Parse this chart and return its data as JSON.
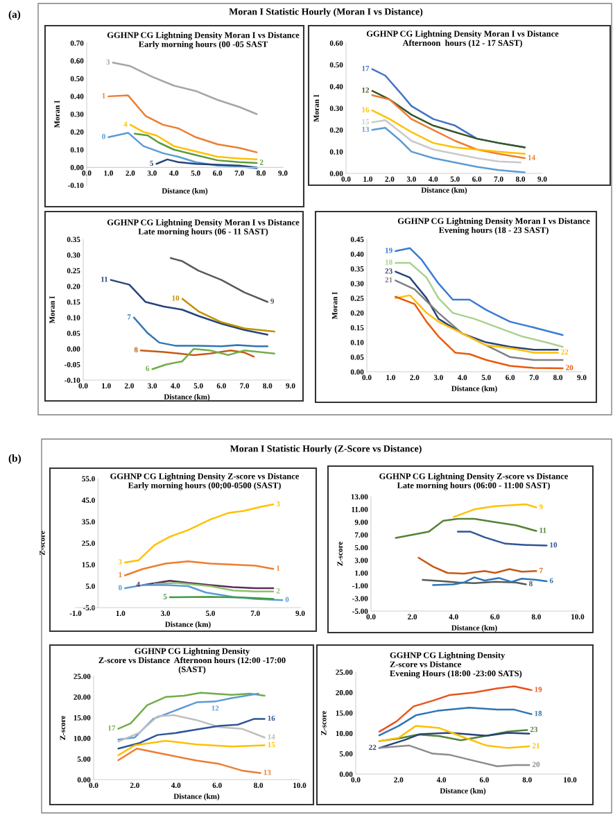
{
  "chart_data": [
    {
      "type": "line",
      "title": "GGHNP CG Lightning Density Moran I vs Distance",
      "subtitle": "Early morning hours (00 -05 SAST",
      "xlabel": "Distance (km)",
      "ylabel": "Moran I",
      "annotations": [
        "(a)",
        "Moran I Statistic Hourly (Moran I vs Distance)"
      ],
      "xlim": [
        0,
        9
      ],
      "xticks": [
        {
          "value": 0,
          "label": "0.0"
        },
        {
          "value": 1,
          "label": "1.0"
        },
        {
          "value": 2,
          "label": "2.0"
        },
        {
          "value": 3,
          "label": "3.0"
        },
        {
          "value": 4,
          "label": "4.0"
        },
        {
          "value": 5,
          "label": "5.0"
        },
        {
          "value": 6,
          "label": "6.0"
        },
        {
          "value": 7,
          "label": "7.0"
        },
        {
          "value": 8,
          "label": "8.0"
        },
        {
          "value": 9,
          "label": "9.0"
        }
      ],
      "ylim": [
        -0.1,
        0.7
      ],
      "yticks": [
        {
          "value": -0.1,
          "label": "-0.10"
        },
        {
          "value": 0,
          "label": "0.00"
        },
        {
          "value": 0.1,
          "label": "0.10"
        },
        {
          "value": 0.2,
          "label": "0.20"
        },
        {
          "value": 0.3,
          "label": "0.30"
        },
        {
          "value": 0.4,
          "label": "0.40"
        },
        {
          "value": 0.5,
          "label": "0.50"
        },
        {
          "value": 0.6,
          "label": "0.60"
        },
        {
          "value": 0.7,
          "label": "0.70"
        }
      ],
      "series": [
        {
          "name": "3",
          "color": "#a5a5a5",
          "x": [
            1.2,
            2,
            3,
            4,
            5,
            6,
            7,
            7.8
          ],
          "values": [
            0.59,
            0.57,
            0.51,
            0.46,
            0.43,
            0.38,
            0.34,
            0.3
          ]
        },
        {
          "name": "1",
          "color": "#ed7d31",
          "x": [
            1.0,
            1.9,
            2.7,
            3.5,
            4.2,
            5,
            6,
            7,
            7.8
          ],
          "values": [
            0.4,
            0.405,
            0.29,
            0.24,
            0.22,
            0.17,
            0.13,
            0.11,
            0.085
          ]
        },
        {
          "name": "4",
          "color": "#ffc000",
          "x": [
            2,
            2.6,
            3.2,
            4,
            5,
            6,
            7,
            7.8
          ],
          "values": [
            0.24,
            0.2,
            0.18,
            0.12,
            0.09,
            0.06,
            0.05,
            0.045
          ]
        },
        {
          "name": "2",
          "color": "#5b9b3a",
          "x": [
            2.2,
            2.8,
            3.3,
            4,
            5,
            6,
            7,
            7.8
          ],
          "values": [
            0.19,
            0.18,
            0.14,
            0.1,
            0.07,
            0.04,
            0.03,
            0.025
          ]
        },
        {
          "name": "0",
          "color": "#5b9bd5",
          "x": [
            1.0,
            1.9,
            2.6,
            3.5,
            4.2,
            5,
            6,
            7,
            7.8
          ],
          "values": [
            0.17,
            0.195,
            0.12,
            0.08,
            0.06,
            0.03,
            0.01,
            0.005,
            -0.005
          ]
        },
        {
          "name": "5",
          "color": "#264478",
          "x": [
            3.2,
            3.7,
            4.2,
            5,
            6,
            7,
            7.8
          ],
          "values": [
            0.02,
            0.045,
            0.03,
            0.02,
            0.015,
            0.01,
            0.0
          ]
        }
      ]
    },
    {
      "type": "line",
      "title": "GGHNP CG Lightning Density Moran I vs Distance",
      "subtitle": "Afternoon  hours (12 - 17 SAST)",
      "xlabel": "Distance (km)",
      "ylabel": "Moran I",
      "xlim": [
        0,
        9
      ],
      "xticks": [
        {
          "value": 0,
          "label": "0.0"
        },
        {
          "value": 1,
          "label": "1.0"
        },
        {
          "value": 2,
          "label": "2.0"
        },
        {
          "value": 3,
          "label": "3.0"
        },
        {
          "value": 4,
          "label": "4.0"
        },
        {
          "value": 5,
          "label": "5.0"
        },
        {
          "value": 6,
          "label": "6.0"
        },
        {
          "value": 7,
          "label": "7.0"
        },
        {
          "value": 8,
          "label": "8.0"
        },
        {
          "value": 9,
          "label": "9.0"
        }
      ],
      "ylim": [
        0,
        0.6
      ],
      "yticks": [
        {
          "value": 0,
          "label": "0.00"
        },
        {
          "value": 0.1,
          "label": "0.10"
        },
        {
          "value": 0.2,
          "label": "0.20"
        },
        {
          "value": 0.3,
          "label": "0.30"
        },
        {
          "value": 0.4,
          "label": "0.40"
        },
        {
          "value": 0.5,
          "label": "0.50"
        },
        {
          "value": 0.6,
          "label": "0.60"
        }
      ],
      "series": [
        {
          "name": "17",
          "color": "#4472c4",
          "x": [
            1.2,
            1.8,
            2.5,
            3,
            4,
            5,
            6,
            7,
            8.2
          ],
          "values": [
            0.48,
            0.45,
            0.37,
            0.31,
            0.25,
            0.22,
            0.16,
            0.14,
            0.12
          ]
        },
        {
          "name": "12",
          "color": "#375623",
          "x": [
            1.2,
            2,
            3,
            4,
            5,
            6,
            7,
            8.2
          ],
          "values": [
            0.38,
            0.34,
            0.27,
            0.22,
            0.19,
            0.16,
            0.14,
            0.12
          ]
        },
        {
          "name": "14",
          "color": "#ed7d31",
          "x": [
            1.2,
            2,
            3,
            4,
            5,
            6,
            7,
            8.2
          ],
          "values": [
            0.36,
            0.34,
            0.25,
            0.2,
            0.15,
            0.11,
            0.09,
            0.07
          ]
        },
        {
          "name": "16",
          "color": "#ffc000",
          "x": [
            1.2,
            2,
            3,
            4,
            5,
            6,
            7,
            8.2
          ],
          "values": [
            0.29,
            0.25,
            0.19,
            0.14,
            0.12,
            0.11,
            0.1,
            0.09
          ]
        },
        {
          "name": "15",
          "color": "#c9c9c9",
          "x": [
            1.2,
            1.8,
            2.5,
            3,
            4,
            5,
            6,
            7,
            8
          ],
          "values": [
            0.235,
            0.245,
            0.19,
            0.15,
            0.11,
            0.09,
            0.07,
            0.055,
            0.05
          ]
        },
        {
          "name": "13",
          "color": "#5b9bd5",
          "x": [
            1.2,
            1.8,
            2.5,
            3,
            4,
            5,
            6,
            7,
            8.2
          ],
          "values": [
            0.2,
            0.21,
            0.15,
            0.1,
            0.07,
            0.05,
            0.03,
            0.015,
            0.005
          ]
        }
      ]
    },
    {
      "type": "line",
      "title": "GGHNP CG Lightning Density Moran I vs Distance",
      "subtitle": "Late morning hours (06 - 11 SAST)",
      "xlabel": "Distance (km)",
      "ylabel": "Moran I",
      "xlim": [
        0,
        9
      ],
      "xticks": [
        {
          "value": 0,
          "label": "0.0"
        },
        {
          "value": 1,
          "label": "1.0"
        },
        {
          "value": 2,
          "label": "2.0"
        },
        {
          "value": 3,
          "label": "3.0"
        },
        {
          "value": 4,
          "label": "4.0"
        },
        {
          "value": 5,
          "label": "5.0"
        },
        {
          "value": 6,
          "label": "6.0"
        },
        {
          "value": 7,
          "label": "7.0"
        },
        {
          "value": 8,
          "label": "8.0"
        },
        {
          "value": 9,
          "label": "9.0"
        }
      ],
      "ylim": [
        -0.1,
        0.35
      ],
      "yticks": [
        {
          "value": -0.1,
          "label": "-0.10"
        },
        {
          "value": -0.05,
          "label": "-0.05"
        },
        {
          "value": 0,
          "label": "0.00"
        },
        {
          "value": 0.05,
          "label": "0.05"
        },
        {
          "value": 0.1,
          "label": "0.10"
        },
        {
          "value": 0.15,
          "label": "0.15"
        },
        {
          "value": 0.2,
          "label": "0.20"
        },
        {
          "value": 0.25,
          "label": "0.25"
        },
        {
          "value": 0.3,
          "label": "0.30"
        },
        {
          "value": 0.35,
          "label": "0.35"
        }
      ],
      "series": [
        {
          "name": "9",
          "color": "#595959",
          "x": [
            3.8,
            4.3,
            5,
            6,
            7,
            8
          ],
          "values": [
            0.29,
            0.28,
            0.25,
            0.22,
            0.18,
            0.15
          ]
        },
        {
          "name": "11",
          "color": "#264478",
          "x": [
            1.2,
            2,
            2.7,
            3.5,
            4.3,
            5,
            6,
            7,
            8
          ],
          "values": [
            0.22,
            0.205,
            0.15,
            0.135,
            0.125,
            0.105,
            0.08,
            0.06,
            0.045
          ]
        },
        {
          "name": "10",
          "color": "#bf9000",
          "x": [
            4.3,
            5,
            6,
            7,
            8.3
          ],
          "values": [
            0.16,
            0.12,
            0.085,
            0.065,
            0.055
          ]
        },
        {
          "name": "7",
          "color": "#2e75b6",
          "x": [
            2.2,
            2.8,
            3.3,
            4,
            5,
            6,
            6.7,
            7.5,
            8
          ],
          "values": [
            0.1,
            0.05,
            0.02,
            0.01,
            0.01,
            0.008,
            0.012,
            0.008,
            0.008
          ]
        },
        {
          "name": "8",
          "color": "#c55a11",
          "x": [
            2.5,
            3.5,
            4.8,
            5.5,
            6.4,
            7,
            7.4
          ],
          "values": [
            -0.005,
            -0.01,
            -0.02,
            -0.015,
            -0.005,
            -0.012,
            -0.025
          ]
        },
        {
          "name": "6",
          "color": "#70ad47",
          "x": [
            3,
            3.6,
            4.3,
            4.8,
            5.5,
            6.3,
            7,
            8.3
          ],
          "values": [
            -0.065,
            -0.05,
            -0.04,
            0.0,
            -0.005,
            -0.02,
            -0.005,
            -0.015
          ]
        }
      ]
    },
    {
      "type": "line",
      "title": "GGHNP CG Lightning Density Moran I vs Distance",
      "subtitle": "Evening hours (18 - 23 SAST)",
      "xlabel": "Distance (km)",
      "ylabel": "Moran I",
      "xlim": [
        0,
        9
      ],
      "xticks": [
        {
          "value": 0,
          "label": "0.0"
        },
        {
          "value": 1,
          "label": "1.0"
        },
        {
          "value": 2,
          "label": "2.0"
        },
        {
          "value": 3,
          "label": "3.0"
        },
        {
          "value": 4,
          "label": "4.0"
        },
        {
          "value": 5,
          "label": "5.0"
        },
        {
          "value": 6,
          "label": "6.0"
        },
        {
          "value": 7,
          "label": "7.0"
        },
        {
          "value": 8,
          "label": "8.0"
        },
        {
          "value": 9,
          "label": "9.0"
        }
      ],
      "ylim": [
        0,
        0.45
      ],
      "yticks": [
        {
          "value": 0,
          "label": "0.00"
        },
        {
          "value": 0.05,
          "label": "0.05"
        },
        {
          "value": 0.1,
          "label": "0.10"
        },
        {
          "value": 0.15,
          "label": "0.15"
        },
        {
          "value": 0.2,
          "label": "0.20"
        },
        {
          "value": 0.25,
          "label": "0.25"
        },
        {
          "value": 0.3,
          "label": "0.30"
        },
        {
          "value": 0.35,
          "label": "0.35"
        },
        {
          "value": 0.4,
          "label": "0.40"
        },
        {
          "value": 0.45,
          "label": "0.45"
        }
      ],
      "series": [
        {
          "name": "19",
          "color": "#3a7bd5",
          "x": [
            1.2,
            1.8,
            2.3,
            3,
            3.6,
            4.3,
            5,
            6,
            7,
            8.2
          ],
          "values": [
            0.41,
            0.42,
            0.38,
            0.3,
            0.245,
            0.245,
            0.21,
            0.17,
            0.15,
            0.125
          ]
        },
        {
          "name": "18",
          "color": "#a9d18e",
          "x": [
            1.2,
            1.8,
            2.5,
            3,
            3.6,
            4.5,
            5.5,
            6.5,
            7.5,
            8.2
          ],
          "values": [
            0.37,
            0.37,
            0.32,
            0.25,
            0.2,
            0.18,
            0.15,
            0.12,
            0.1,
            0.085
          ]
        },
        {
          "name": "23",
          "color": "#264478",
          "x": [
            1.2,
            1.8,
            2.5,
            3,
            4,
            5,
            6,
            7,
            8
          ],
          "values": [
            0.34,
            0.32,
            0.25,
            0.18,
            0.13,
            0.1,
            0.085,
            0.075,
            0.075
          ]
        },
        {
          "name": "21",
          "color": "#7f7f7f",
          "x": [
            1.2,
            2,
            3,
            4,
            5,
            6,
            7,
            8.2
          ],
          "values": [
            0.31,
            0.28,
            0.2,
            0.13,
            0.09,
            0.05,
            0.04,
            0.04
          ]
        },
        {
          "name": "22",
          "color": "#ffc000",
          "x": [
            1.2,
            1.8,
            2.5,
            3,
            4,
            5,
            6,
            7,
            8
          ],
          "values": [
            0.25,
            0.26,
            0.2,
            0.17,
            0.13,
            0.09,
            0.08,
            0.065,
            0.065
          ]
        },
        {
          "name": "20",
          "color": "#e85a0c",
          "x": [
            1.2,
            2,
            2.5,
            3,
            3.7,
            4.3,
            5,
            6,
            7,
            8.2
          ],
          "values": [
            0.255,
            0.23,
            0.17,
            0.12,
            0.065,
            0.06,
            0.04,
            0.02,
            0.013,
            0.012
          ]
        }
      ]
    },
    {
      "type": "line",
      "title": "GGHNP CG Lightning Density Z-score vs Distance",
      "subtitle": "Early morning hours (00;00-0500 (SAST)",
      "xlabel": "Distance (km)",
      "ylabel": "Z-score",
      "annotations": [
        "(b)",
        "Moran I Statistic Hourly (Z-Score vs Distance)"
      ],
      "xlim": [
        -1,
        9
      ],
      "xticks": [
        {
          "value": -1,
          "label": "-1.0"
        },
        {
          "value": 1,
          "label": "1.0"
        },
        {
          "value": 3,
          "label": "3.0"
        },
        {
          "value": 5,
          "label": "5.0"
        },
        {
          "value": 7,
          "label": "7.0"
        },
        {
          "value": 9,
          "label": "9.0"
        }
      ],
      "ylim": [
        -5,
        55
      ],
      "yticks": [
        {
          "value": -5,
          "label": "-5.0"
        },
        {
          "value": 5,
          "label": "5.0"
        },
        {
          "value": 15,
          "label": "15.0"
        },
        {
          "value": 25,
          "label": "25.0"
        },
        {
          "value": 35,
          "label": "35.0"
        },
        {
          "value": 45,
          "label": "45.0"
        },
        {
          "value": 55,
          "label": "55.0"
        }
      ],
      "series": [
        {
          "name": "3",
          "color": "#ffc000",
          "x": [
            1.2,
            1.8,
            2.5,
            3.2,
            4,
            5,
            5.8,
            6.5,
            7.3,
            7.8
          ],
          "values": [
            16,
            17,
            24,
            28,
            31,
            36,
            39,
            40,
            42,
            43
          ]
        },
        {
          "name": "1",
          "color": "#ed7d31",
          "x": [
            1.2,
            2,
            3,
            4,
            5,
            6,
            7,
            7.8
          ],
          "values": [
            10,
            13,
            15.5,
            16.5,
            15.5,
            15,
            14.5,
            13
          ]
        },
        {
          "name": "4",
          "color": "#5b2c58",
          "x": [
            2,
            3.2,
            4,
            5,
            6,
            7,
            7.8
          ],
          "values": [
            5.5,
            7.5,
            6.5,
            5.5,
            4.5,
            4,
            4
          ]
        },
        {
          "name": "2",
          "color": "#8cc06b",
          "x": [
            2.5,
            3.5,
            5,
            6,
            7,
            7.8
          ],
          "values": [
            6,
            6.5,
            5,
            3,
            2.5,
            2.5
          ]
        },
        {
          "name": "0",
          "color": "#5b9bd5",
          "x": [
            1.2,
            2,
            3,
            4,
            4.8,
            6,
            7,
            8.2
          ],
          "values": [
            4,
            5.5,
            5.5,
            5,
            2,
            0,
            -1,
            -1.5
          ]
        },
        {
          "name": "5",
          "color": "#3f9b3f",
          "x": [
            3.2,
            5,
            6.5,
            7.8
          ],
          "values": [
            -0.2,
            0,
            -0.3,
            -1
          ]
        }
      ]
    },
    {
      "type": "line",
      "title": "GGHNP CG Lightning Density Z-score vs Distance",
      "subtitle": "Late morning hours (06:00 - 11:00 SAST)",
      "xlabel": "Distance (km)",
      "ylabel": "Z-score",
      "xlim": [
        0,
        10
      ],
      "xticks": [
        {
          "value": 0,
          "label": "0.0"
        },
        {
          "value": 2,
          "label": "2.0"
        },
        {
          "value": 4,
          "label": "4.0"
        },
        {
          "value": 6,
          "label": "6.0"
        },
        {
          "value": 8,
          "label": "8.0"
        },
        {
          "value": 10,
          "label": "10.0"
        }
      ],
      "ylim": [
        -5,
        13
      ],
      "yticks": [
        {
          "value": -5,
          "label": "-5.00"
        },
        {
          "value": -3,
          "label": "-3.00"
        },
        {
          "value": -1,
          "label": "-1.00"
        },
        {
          "value": 1,
          "label": "1.00"
        },
        {
          "value": 3,
          "label": "3.00"
        },
        {
          "value": 5,
          "label": "5.00"
        },
        {
          "value": 7,
          "label": "7.00"
        },
        {
          "value": 9,
          "label": "9.00"
        },
        {
          "value": 11,
          "label": "11.00"
        },
        {
          "value": 13,
          "label": "13.00"
        }
      ],
      "series": [
        {
          "name": "9",
          "color": "#ffc000",
          "x": [
            4,
            5,
            6,
            7,
            7.5,
            8
          ],
          "values": [
            9.8,
            11,
            11.5,
            11.7,
            11.8,
            11.3
          ]
        },
        {
          "name": "11",
          "color": "#548235",
          "x": [
            1.2,
            2,
            2.8,
            3.5,
            4.2,
            5,
            6,
            7,
            8
          ],
          "values": [
            6.5,
            7,
            7.5,
            9.2,
            9.5,
            9.5,
            9.0,
            8.5,
            7.6
          ]
        },
        {
          "name": "10",
          "color": "#2f5597",
          "x": [
            4.2,
            4.8,
            5.5,
            6.5,
            7.5,
            8.5
          ],
          "values": [
            7.5,
            7.5,
            6.6,
            5.6,
            5.4,
            5.3
          ]
        },
        {
          "name": "7",
          "color": "#c55a11",
          "x": [
            2.3,
            3,
            3.7,
            4.5,
            5.5,
            6,
            6.7,
            7.3,
            8
          ],
          "values": [
            3.4,
            2,
            1.0,
            0.9,
            1.3,
            1.0,
            1.6,
            1.2,
            1.3
          ]
        },
        {
          "name": "8",
          "color": "#595959",
          "x": [
            2.5,
            3.5,
            4.2,
            5,
            6,
            7,
            7.5
          ],
          "values": [
            -0.1,
            -0.3,
            -0.5,
            -0.6,
            -0.4,
            -0.5,
            -0.8
          ]
        },
        {
          "name": "6",
          "color": "#2e75b6",
          "x": [
            3,
            4,
            4.5,
            5,
            5.5,
            6.2,
            6.8,
            7.3,
            8,
            8.5
          ],
          "values": [
            -0.9,
            -0.8,
            -0.5,
            0.3,
            -0.2,
            0.2,
            -0.4,
            0.1,
            -0.1,
            -0.3
          ]
        }
      ]
    },
    {
      "type": "line",
      "title": "GGHNP CG Lightning Density",
      "subtitle": "Z-score vs Distance  Afternoon hours (12:00 -17:00\n(SAST)",
      "xlabel": "Distance (km)",
      "ylabel": "Z-score",
      "xlim": [
        0,
        10
      ],
      "xticks": [
        {
          "value": 0,
          "label": "0.0"
        },
        {
          "value": 2,
          "label": "2.0"
        },
        {
          "value": 4,
          "label": "4.0"
        },
        {
          "value": 6,
          "label": "6.0"
        },
        {
          "value": 8,
          "label": "8.0"
        },
        {
          "value": 10,
          "label": "10.0"
        }
      ],
      "ylim": [
        0,
        25
      ],
      "yticks": [
        {
          "value": 0,
          "label": "0.00"
        },
        {
          "value": 5,
          "label": "5.00"
        },
        {
          "value": 10,
          "label": "10.00"
        },
        {
          "value": 15,
          "label": "15.00"
        },
        {
          "value": 20,
          "label": "20.00"
        },
        {
          "value": 25,
          "label": "25.00"
        }
      ],
      "series": [
        {
          "name": "17",
          "color": "#70ad47",
          "x": [
            1.2,
            1.8,
            2.6,
            3.5,
            4.4,
            5.2,
            6.7,
            7.6,
            8.3
          ],
          "values": [
            12.3,
            13.6,
            18,
            20,
            20.3,
            21,
            20.5,
            20.8,
            20.3
          ]
        },
        {
          "name": "12",
          "color": "#5b9bd5",
          "x": [
            1.2,
            2,
            2.9,
            3.9,
            5,
            5.9,
            6.7,
            8
          ],
          "values": [
            9.7,
            10.2,
            14.7,
            16.6,
            18.7,
            18.9,
            19.7,
            20.8
          ]
        },
        {
          "name": "14",
          "color": "#bfbfbf",
          "x": [
            1.2,
            2.2,
            3.1,
            3.9,
            5,
            6.1,
            7.2,
            8.3
          ],
          "values": [
            9.2,
            11.3,
            15.3,
            15.6,
            14.4,
            12.7,
            12.3,
            10.2
          ]
        },
        {
          "name": "16",
          "color": "#2f5597",
          "x": [
            1.2,
            2.2,
            3.1,
            4,
            5.1,
            6.1,
            7,
            7.8,
            8.3
          ],
          "values": [
            7.5,
            8.8,
            10.8,
            11.3,
            12.2,
            13,
            13.3,
            14.7,
            14.7
          ]
        },
        {
          "name": "15",
          "color": "#ffc000",
          "x": [
            1.2,
            2,
            3.5,
            5,
            6.7,
            8.3
          ],
          "values": [
            5.9,
            8.3,
            9.4,
            8.5,
            8,
            8.3
          ]
        },
        {
          "name": "13",
          "color": "#ed7d31",
          "x": [
            1.2,
            2.1,
            3.3,
            5,
            6.1,
            7.2,
            8.1
          ],
          "values": [
            4.7,
            7.5,
            6.3,
            4.6,
            3.8,
            2.2,
            1.6
          ]
        }
      ]
    },
    {
      "type": "line",
      "title": "GGHNP CG Lightning Density",
      "subtitle": "Z-score vs Distance\nEvening Hours (18:00 -23:00 SATS)",
      "xlabel": "Distance (km)",
      "ylabel": "Z-score",
      "xlim": [
        0,
        10
      ],
      "xticks": [
        {
          "value": 0,
          "label": "0.0"
        },
        {
          "value": 2,
          "label": "2.0"
        },
        {
          "value": 4,
          "label": "4.0"
        },
        {
          "value": 6,
          "label": "6.0"
        },
        {
          "value": 8,
          "label": "8.0"
        },
        {
          "value": 10,
          "label": "10.0"
        }
      ],
      "ylim": [
        0,
        25
      ],
      "yticks": [
        {
          "value": 0,
          "label": "0.00"
        },
        {
          "value": 5,
          "label": "5.00"
        },
        {
          "value": 10,
          "label": "10.00"
        },
        {
          "value": 15,
          "label": "15.00"
        },
        {
          "value": 20,
          "label": "20.00"
        },
        {
          "value": 25,
          "label": "25.00"
        }
      ],
      "series": [
        {
          "name": "19",
          "color": "#e8541c",
          "x": [
            1.1,
            1.9,
            2.7,
            3.6,
            4.4,
            5.5,
            6.6,
            7.4,
            8.2
          ],
          "values": [
            10.4,
            12.9,
            16.6,
            18,
            19.4,
            20,
            21,
            21.5,
            20.6
          ]
        },
        {
          "name": "18",
          "color": "#2e75b6",
          "x": [
            1.1,
            2,
            2.8,
            3.8,
            5.3,
            6.6,
            7.4,
            8.2
          ],
          "values": [
            9.5,
            11.8,
            14.4,
            15.5,
            16.3,
            15.8,
            15.8,
            14.7
          ]
        },
        {
          "name": "23",
          "color": "#548235",
          "x": [
            1.1,
            2,
            2.9,
            3.9,
            4.9,
            6.1,
            7.1,
            8
          ],
          "values": [
            8.1,
            8.7,
            9.7,
            9.3,
            8.3,
            9.4,
            10.4,
            10.8
          ]
        },
        {
          "name": "22",
          "color": "#264478",
          "x": [
            1.1,
            2.3,
            3,
            4.4,
            6.1,
            7.1,
            8.1
          ],
          "values": [
            6.4,
            8.4,
            9.8,
            10.1,
            9.4,
            10.1,
            9.9
          ]
        },
        {
          "name": "21",
          "color": "#ffc000",
          "x": [
            1.1,
            2,
            2.8,
            3.9,
            5,
            6.1,
            7.1,
            8.1
          ],
          "values": [
            8.1,
            8.9,
            11.8,
            11.3,
            9.1,
            7.0,
            6.4,
            6.8
          ]
        },
        {
          "name": "20",
          "color": "#8c8c8c",
          "x": [
            1.1,
            2.5,
            3.6,
            4.4,
            5.5,
            6.6,
            7.4,
            8.1
          ],
          "values": [
            6.4,
            7,
            5,
            4.7,
            3.3,
            1.9,
            2.2,
            2.2
          ]
        }
      ]
    }
  ]
}
